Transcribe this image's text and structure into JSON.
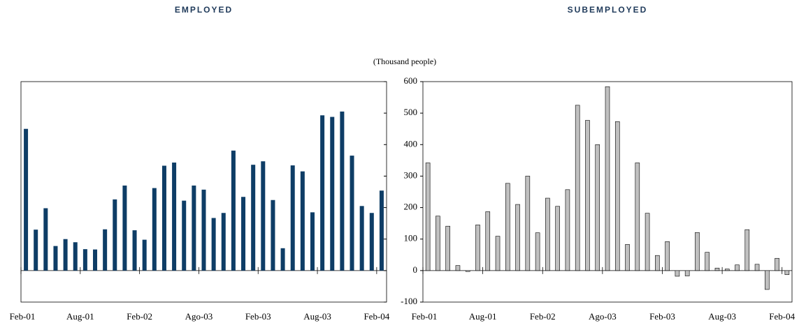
{
  "chart_data": [
    {
      "type": "bar",
      "title": "EMPLOYED",
      "categories": [
        "Feb-01",
        null,
        null,
        null,
        null,
        null,
        "Aug-01",
        null,
        null,
        null,
        null,
        null,
        "Feb-02",
        null,
        null,
        null,
        null,
        null,
        "Ago-03",
        null,
        null,
        null,
        null,
        null,
        "Feb-03",
        null,
        null,
        null,
        null,
        null,
        "Aug-03",
        null,
        null,
        null,
        null,
        null,
        "Feb-04"
      ],
      "values": [
        450,
        130,
        198,
        78,
        100,
        90,
        68,
        67,
        131,
        226,
        270,
        128,
        98,
        262,
        333,
        343,
        222,
        270,
        257,
        167,
        183,
        381,
        234,
        336,
        347,
        224,
        71,
        334,
        315,
        185,
        493,
        488,
        505,
        365,
        205,
        183,
        254
      ],
      "color": "#0e3d66",
      "ylim": [
        -100,
        600
      ],
      "yticks": [
        -100,
        0,
        100,
        200,
        300,
        400,
        500,
        600
      ]
    },
    {
      "type": "bar",
      "title": "SUBEMPLOYED",
      "ylabel": "(Thousand people)",
      "categories": [
        "Feb-01",
        null,
        null,
        null,
        null,
        null,
        "Aug-01",
        null,
        null,
        null,
        null,
        null,
        "Feb-02",
        null,
        null,
        null,
        null,
        null,
        "Ago-03",
        null,
        null,
        null,
        null,
        null,
        "Feb-03",
        null,
        null,
        null,
        null,
        null,
        "Aug-03",
        null,
        null,
        null,
        null,
        null,
        "Feb-04"
      ],
      "values": [
        342,
        173,
        141,
        16,
        -3,
        145,
        187,
        109,
        277,
        210,
        300,
        120,
        230,
        204,
        257,
        525,
        477,
        400,
        584,
        473,
        83,
        342,
        182,
        48,
        92,
        -18,
        -17,
        121,
        58,
        8,
        5,
        18,
        130,
        20,
        -60,
        39,
        -13
      ],
      "color": "#c0c0c0",
      "ylim": [
        -100,
        600
      ],
      "yticks": [
        -100,
        0,
        100,
        200,
        300,
        400,
        500,
        600
      ]
    }
  ]
}
